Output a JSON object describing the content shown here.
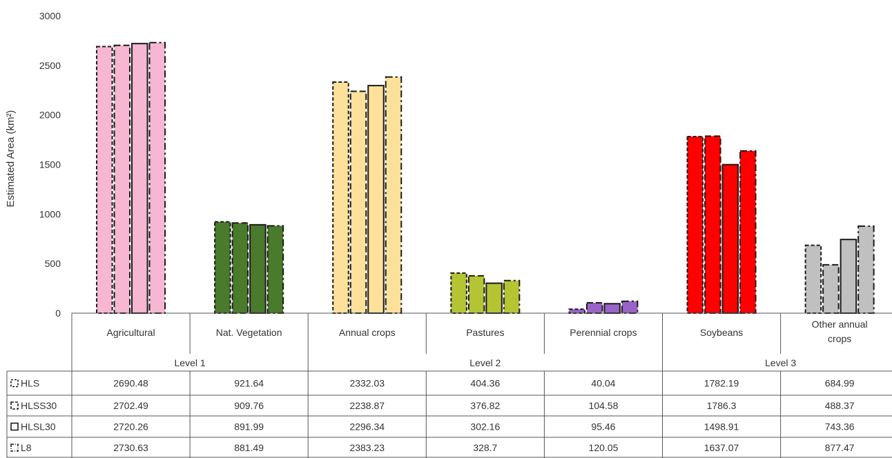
{
  "chart_data": {
    "type": "bar",
    "ylabel": "Estimated Area (km²)",
    "ylim": [
      0,
      3000
    ],
    "yticks": [
      0,
      500,
      1000,
      1500,
      2000,
      2500,
      3000
    ],
    "grid": false,
    "legend": "data table rows (left)",
    "categories": [
      "Agricultural",
      "Nat. Vegetation",
      "Annual crops",
      "Pastures",
      "Perennial crops",
      "Soybeans",
      "Other annual crops"
    ],
    "category_colors": [
      "#f7b6d2",
      "#4a7a2c",
      "#fde09a",
      "#b4c433",
      "#9a63c9",
      "#ff0000",
      "#c0c0c0"
    ],
    "groups": [
      {
        "label": "Level 1",
        "span": [
          0,
          1
        ]
      },
      {
        "label": "Level 2",
        "span": [
          2,
          4
        ]
      },
      {
        "label": "Level 3",
        "span": [
          5,
          6
        ]
      }
    ],
    "series": [
      {
        "name": "HLS",
        "border": "dashed",
        "values": [
          "2690.48",
          "921.64",
          "2332.03",
          "404.36",
          "40.04",
          "1782.19",
          "684.99"
        ]
      },
      {
        "name": "HLSS30",
        "border": "long-dashed",
        "values": [
          "2702.49",
          "909.76",
          "2238.87",
          "376.82",
          "104.58",
          "1786.3",
          "488.37"
        ]
      },
      {
        "name": "HLSL30",
        "border": "solid",
        "values": [
          "2720.26",
          "891.99",
          "2296.34",
          "302.16",
          "95.46",
          "1498.91",
          "743.36"
        ]
      },
      {
        "name": "L8",
        "border": "dash-dot",
        "values": [
          "2730.63",
          "881.49",
          "2383.23",
          "328.7",
          "120.05",
          "1637.07",
          "877.47"
        ]
      }
    ]
  }
}
